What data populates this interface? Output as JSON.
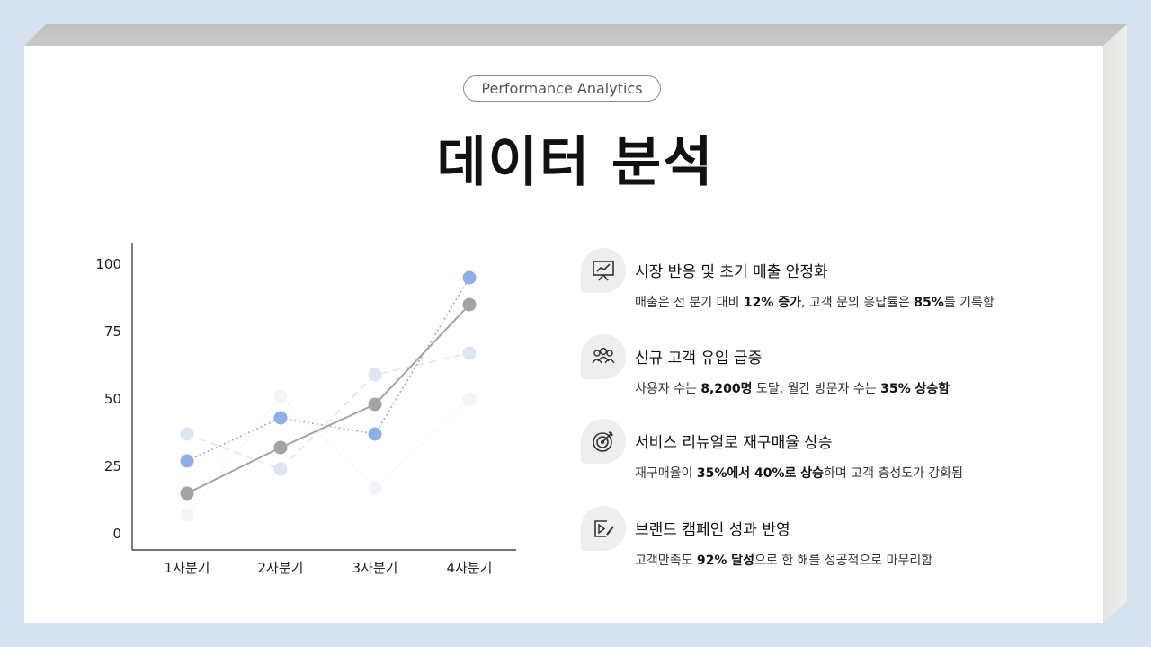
{
  "header": {
    "badge": "Performance Analytics",
    "title": "데이터 분석"
  },
  "chart_data": {
    "type": "line",
    "categories": [
      "1사분기",
      "2사분기",
      "3사분기",
      "4사분기"
    ],
    "y_ticks": [
      0,
      25,
      50,
      75,
      100
    ],
    "ylim": [
      0,
      100
    ],
    "grid": false,
    "series": [
      {
        "values": [
          7,
          51,
          17,
          50
        ],
        "color": "#f2f4f7",
        "style": "dotted"
      },
      {
        "values": [
          37,
          24,
          59,
          67
        ],
        "color": "#dde5f2",
        "style": "dashed"
      },
      {
        "values": [
          27,
          43,
          37,
          95
        ],
        "color": "#8fb0e6",
        "style": "dotted"
      },
      {
        "values": [
          15,
          32,
          48,
          85
        ],
        "color": "#a3a3a3",
        "style": "solid"
      }
    ]
  },
  "items": [
    {
      "icon": "presentation-chart-icon",
      "title": "시장 반응 및 초기 매출 안정화",
      "desc": [
        {
          "t": "매출은 전 분기 대비 "
        },
        {
          "t": "12% 증가",
          "b": true
        },
        {
          "t": ", 고객 문의 응답률은 "
        },
        {
          "t": "85%",
          "b": true
        },
        {
          "t": "를 기록함"
        }
      ]
    },
    {
      "icon": "users-group-icon",
      "title": "신규 고객 유입 급증",
      "desc": [
        {
          "t": "사용자 수는 "
        },
        {
          "t": "8,200명",
          "b": true
        },
        {
          "t": " 도달, 월간 방문자 수는 "
        },
        {
          "t": "35% 상승함",
          "b": true
        }
      ]
    },
    {
      "icon": "target-icon",
      "title": "서비스 리뉴얼로 재구매율 상승",
      "desc": [
        {
          "t": "재구매율이 "
        },
        {
          "t": "35%에서 40%로 상승",
          "b": true
        },
        {
          "t": "하며 고객 충성도가 강화됨"
        }
      ]
    },
    {
      "icon": "video-edit-icon",
      "title": "브랜드 캠페인 성과 반영",
      "desc": [
        {
          "t": "고객만족도 "
        },
        {
          "t": "92% 달성",
          "b": true
        },
        {
          "t": "으로 한 해를 성공적으로 마무리함"
        }
      ]
    }
  ]
}
